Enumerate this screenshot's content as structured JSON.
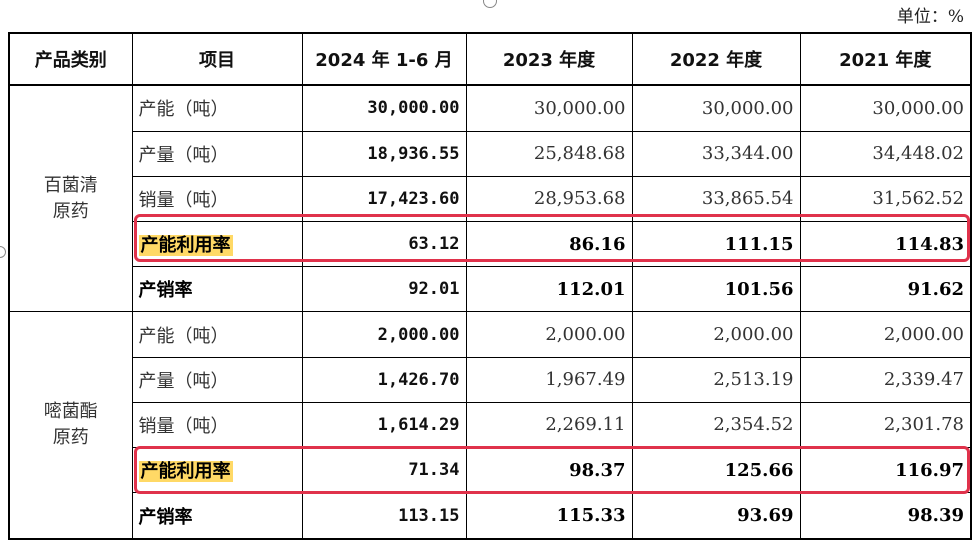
{
  "unit_label": "单位：%",
  "headers": [
    "产品类别",
    "项目",
    "2024 年 1-6 月",
    "2023 年度",
    "2022 年度",
    "2021 年度"
  ],
  "groups": [
    {
      "category": [
        "百菌清",
        "原药"
      ],
      "rows": [
        {
          "item": "产能（吨）",
          "v2024": "30,000.00",
          "v2023": "30,000.00",
          "v2022": "30,000.00",
          "v2021": "30,000.00"
        },
        {
          "item": "产量（吨）",
          "v2024": "18,936.55",
          "v2023": "25,848.68",
          "v2022": "33,344.00",
          "v2021": "34,448.02"
        },
        {
          "item": "销量（吨）",
          "v2024": "17,423.60",
          "v2023": "28,953.68",
          "v2022": "33,865.54",
          "v2021": "31,562.52"
        },
        {
          "item": "产能利用率",
          "v2024": "63.12",
          "v2023": "86.16",
          "v2022": "111.15",
          "v2021": "114.83"
        },
        {
          "item": "产销率",
          "v2024": "92.01",
          "v2023": "112.01",
          "v2022": "101.56",
          "v2021": "91.62"
        }
      ]
    },
    {
      "category": [
        "嘧菌酯",
        "原药"
      ],
      "rows": [
        {
          "item": "产能（吨）",
          "v2024": "2,000.00",
          "v2023": "2,000.00",
          "v2022": "2,000.00",
          "v2021": "2,000.00"
        },
        {
          "item": "产量（吨）",
          "v2024": "1,426.70",
          "v2023": "1,967.49",
          "v2022": "2,513.19",
          "v2021": "2,339.47"
        },
        {
          "item": "销量（吨）",
          "v2024": "1,614.29",
          "v2023": "2,269.11",
          "v2022": "2,354.52",
          "v2021": "2,301.78"
        },
        {
          "item": "产能利用率",
          "v2024": "71.34",
          "v2023": "98.37",
          "v2022": "125.66",
          "v2021": "116.97"
        },
        {
          "item": "产销率",
          "v2024": "113.15",
          "v2023": "115.33",
          "v2022": "93.69",
          "v2021": "98.39"
        }
      ]
    }
  ],
  "highlight_color": "#ffd966",
  "box_color": "#e0324b"
}
